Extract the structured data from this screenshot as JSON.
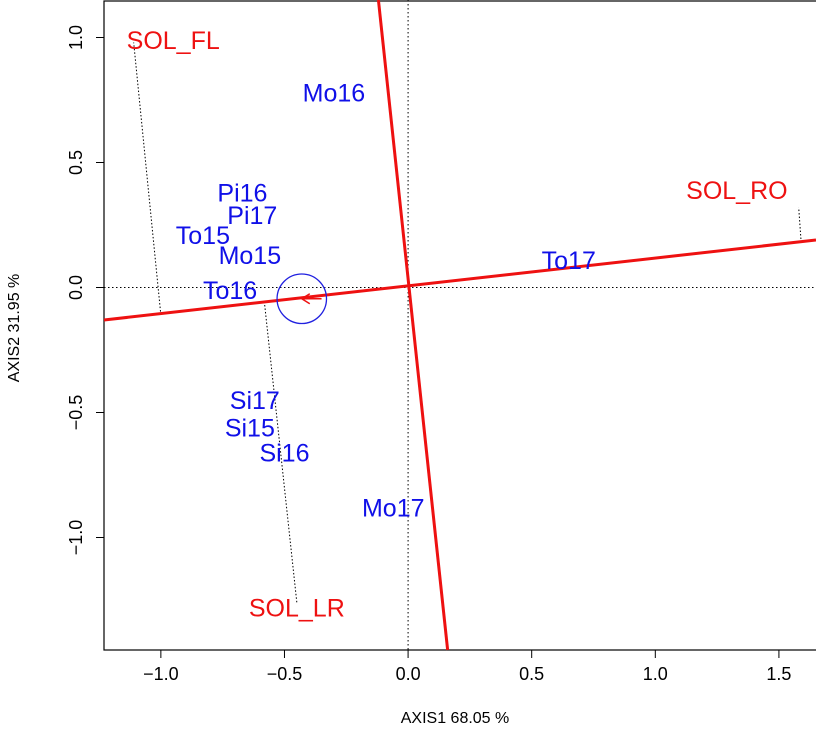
{
  "chart_data": {
    "type": "scatter",
    "title": "",
    "xlabel": "AXIS1 68.05 %",
    "ylabel": "AXIS2 31.95 %",
    "xlim": [
      -1.23,
      1.65
    ],
    "ylim": [
      -1.45,
      1.15
    ],
    "x_ticks": [
      -1.0,
      -0.5,
      0.0,
      0.5,
      1.0,
      1.5
    ],
    "x_tick_labels": [
      "−1.0",
      "−0.5",
      "0.0",
      "0.5",
      "1.0",
      "1.5"
    ],
    "y_ticks": [
      -1.0,
      -0.5,
      0.0,
      0.5,
      1.0
    ],
    "y_tick_labels": [
      "−1.0",
      "−0.5",
      "0.0",
      "0.5",
      "1.0"
    ],
    "grid": false,
    "colors": {
      "points": "#1010e8",
      "soil": "#ee1111",
      "lines": "#ee1111",
      "circle": "#2020e0"
    },
    "points": [
      {
        "label": "Mo16",
        "x": -0.3,
        "y": 0.78
      },
      {
        "label": "Pi16",
        "x": -0.67,
        "y": 0.38
      },
      {
        "label": "Pi17",
        "x": -0.63,
        "y": 0.29
      },
      {
        "label": "To15",
        "x": -0.83,
        "y": 0.21
      },
      {
        "label": "Mo15",
        "x": -0.64,
        "y": 0.13
      },
      {
        "label": "To16",
        "x": -0.72,
        "y": -0.01
      },
      {
        "label": "To17",
        "x": 0.65,
        "y": 0.11
      },
      {
        "label": "Si17",
        "x": -0.62,
        "y": -0.45
      },
      {
        "label": "Si15",
        "x": -0.64,
        "y": -0.56
      },
      {
        "label": "Si16",
        "x": -0.5,
        "y": -0.66
      },
      {
        "label": "Mo17",
        "x": -0.06,
        "y": -0.88
      }
    ],
    "soil_labels": [
      {
        "label": "SOL_FL",
        "x": -0.95,
        "y": 0.99,
        "anchor_x": -1.0,
        "anchor_y": -0.11,
        "tip_x": -1.11,
        "tip_y": 0.98
      },
      {
        "label": "SOL_RO",
        "x": 1.33,
        "y": 0.39,
        "anchor_x": 1.59,
        "anchor_y": 0.18,
        "tip_x": 1.58,
        "tip_y": 0.32
      },
      {
        "label": "SOL_LR",
        "x": -0.45,
        "y": -1.28,
        "anchor_x": -0.58,
        "anchor_y": -0.07,
        "tip_x": -0.45,
        "tip_y": -1.26
      }
    ],
    "red_lines": [
      {
        "x1": -1.23,
        "y1": -0.13,
        "x2": 1.65,
        "y2": 0.19
      },
      {
        "x1": -0.12,
        "y1": 1.15,
        "x2": 0.16,
        "y2": -1.45
      }
    ],
    "arrow": {
      "x1": -0.35,
      "y1": -0.045,
      "x2": -0.43,
      "y2": -0.045
    },
    "circle": {
      "x": -0.43,
      "y": -0.045,
      "r": 0.1
    }
  }
}
